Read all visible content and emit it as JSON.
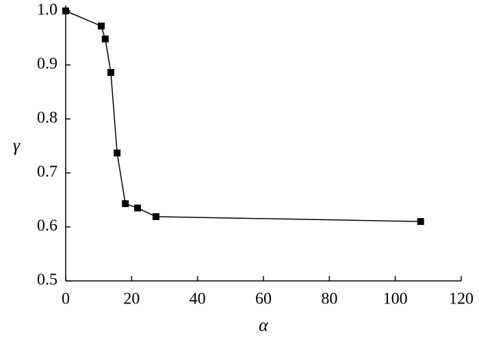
{
  "chart_data": {
    "type": "line",
    "x_label": "α",
    "y_label": "γ",
    "x": [
      0,
      10.8,
      12.0,
      13.7,
      15.6,
      18.1,
      21.8,
      27.4,
      107.7
    ],
    "series": [
      {
        "color": "#000000",
        "values": [
          1.0,
          0.972,
          0.948,
          0.886,
          0.737,
          0.643,
          0.635,
          0.619,
          0.61
        ]
      }
    ],
    "xlim": [
      0,
      120
    ],
    "xticks": [
      0,
      20,
      40,
      60,
      80,
      100,
      120
    ],
    "ylim": [
      0.5,
      1.0
    ],
    "yticks": [
      0.5,
      0.6,
      0.7,
      0.8,
      0.9,
      {
        "value": 1.0,
        "label": "1.0"
      }
    ],
    "marker": "square",
    "grid": false
  }
}
